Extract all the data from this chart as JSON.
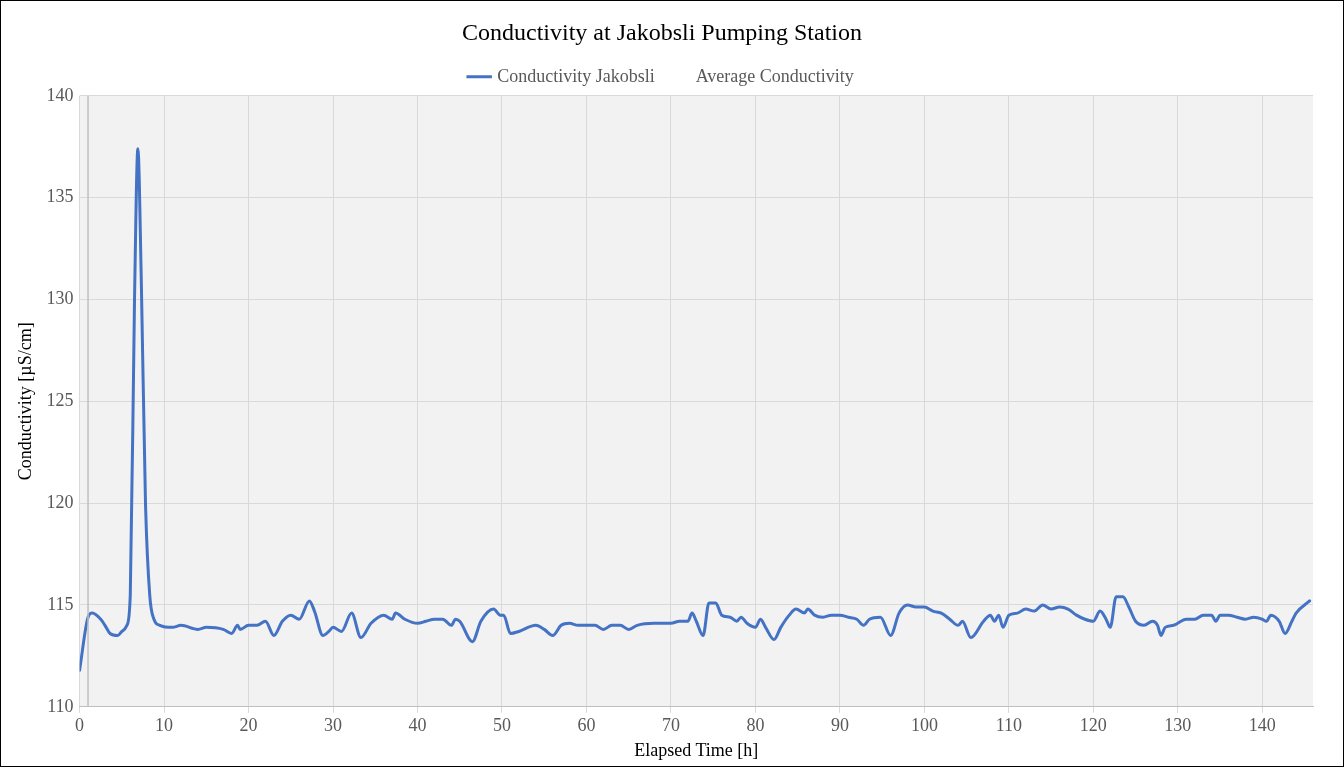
{
  "chart_data": {
    "type": "line",
    "title": "Conductivity at Jakobsli Pumping Station",
    "xlabel": "Elapsed Time [h]",
    "ylabel": "Conductivity [µS/cm]",
    "xlim": [
      0,
      146
    ],
    "xticks": [
      0,
      10,
      20,
      30,
      40,
      50,
      60,
      70,
      80,
      90,
      100,
      110,
      120,
      130,
      140
    ],
    "ylim": [
      110,
      140
    ],
    "yticks": [
      110,
      115,
      120,
      125,
      130,
      135,
      140
    ],
    "grid": true,
    "legend": "top",
    "marker": "none",
    "line_style": "solid",
    "ref_lines": [
      {
        "axis": "x",
        "value": 1,
        "color": "#bfbfbf"
      }
    ],
    "series": [
      {
        "name": "Conductivity Jakobsli",
        "color": "#4472c4",
        "x": [
          0,
          1,
          1.5,
          2.5,
          3,
          3.6,
          4.5,
          5,
          5.6,
          6,
          6.5,
          6.9,
          7.3,
          7.8,
          8.3,
          8.8,
          9.5,
          11,
          12,
          14,
          15,
          17,
          18,
          18.7,
          19,
          20,
          21,
          22,
          23,
          24,
          25,
          26,
          27.2,
          27.8,
          28.8,
          29.5,
          30,
          31,
          32.2,
          33.3,
          34.5,
          36,
          37,
          37.4,
          38.5,
          40,
          41,
          42,
          43,
          44,
          44.5,
          45,
          46.5,
          47.5,
          49,
          49.8,
          50.2,
          51,
          52,
          54,
          55,
          56,
          57,
          58,
          59,
          61,
          62,
          63,
          64,
          65,
          66,
          68,
          70,
          71,
          72,
          72.5,
          73,
          73.8,
          74.5,
          75.3,
          76,
          77,
          77.8,
          78.3,
          79,
          80,
          80.6,
          81.2,
          82.2,
          83,
          84,
          84.8,
          85.8,
          86.2,
          87,
          88,
          89,
          90,
          91,
          92,
          92.8,
          93.5,
          94.8,
          96,
          97,
          98,
          99,
          100,
          101,
          102,
          103,
          104,
          104.5,
          105.5,
          107,
          107.8,
          108.3,
          108.8,
          109.3,
          110,
          111,
          112,
          113,
          114,
          115,
          116,
          117,
          118,
          119,
          120,
          120.8,
          121.5,
          122,
          122.7,
          123.5,
          124.2,
          125,
          126,
          127,
          127.6,
          128,
          128.5,
          129.5,
          131,
          132,
          133,
          134,
          134.5,
          135,
          136,
          137,
          138,
          139,
          140,
          140.5,
          141,
          142,
          142.7,
          143.5,
          144,
          145.6
        ],
        "values": [
          111.8,
          114.4,
          114.6,
          114.3,
          114.0,
          113.6,
          113.5,
          113.7,
          114.0,
          115.5,
          130,
          137.4,
          131,
          120,
          115.5,
          114.3,
          114.0,
          113.9,
          114.0,
          113.8,
          113.9,
          113.8,
          113.6,
          114.0,
          113.8,
          114.0,
          114.0,
          114.2,
          113.5,
          114.2,
          114.5,
          114.3,
          115.2,
          114.7,
          113.5,
          113.7,
          113.9,
          113.7,
          114.6,
          113.4,
          114.1,
          114.5,
          114.3,
          114.6,
          114.3,
          114.1,
          114.2,
          114.3,
          114.3,
          114.0,
          114.3,
          114.2,
          113.2,
          114.2,
          114.8,
          114.5,
          114.5,
          113.6,
          113.7,
          114.0,
          113.8,
          113.5,
          114.0,
          114.1,
          114.0,
          114.0,
          113.8,
          114.0,
          114.0,
          113.8,
          114.0,
          114.1,
          114.1,
          114.2,
          114.2,
          114.6,
          114.2,
          113.5,
          115.1,
          115.1,
          114.5,
          114.4,
          114.2,
          114.4,
          114.1,
          113.9,
          114.3,
          113.9,
          113.3,
          113.9,
          114.5,
          114.8,
          114.6,
          114.8,
          114.5,
          114.4,
          114.5,
          114.5,
          114.4,
          114.3,
          114.0,
          114.3,
          114.4,
          113.5,
          114.6,
          115.0,
          114.9,
          114.9,
          114.7,
          114.6,
          114.3,
          114.0,
          114.2,
          113.4,
          114.2,
          114.5,
          114.2,
          114.5,
          113.9,
          114.5,
          114.6,
          114.8,
          114.7,
          115.0,
          114.8,
          114.9,
          114.8,
          114.5,
          114.3,
          114.2,
          114.7,
          114.3,
          113.9,
          115.4,
          115.4,
          114.9,
          114.2,
          114.0,
          114.2,
          114.0,
          113.5,
          113.9,
          114.0,
          114.3,
          114.3,
          114.5,
          114.5,
          114.2,
          114.5,
          114.5,
          114.4,
          114.3,
          114.4,
          114.3,
          114.2,
          114.5,
          114.2,
          113.6,
          114.2,
          114.6,
          115.2
        ]
      },
      {
        "name": "Average Conductivity"
      }
    ]
  }
}
